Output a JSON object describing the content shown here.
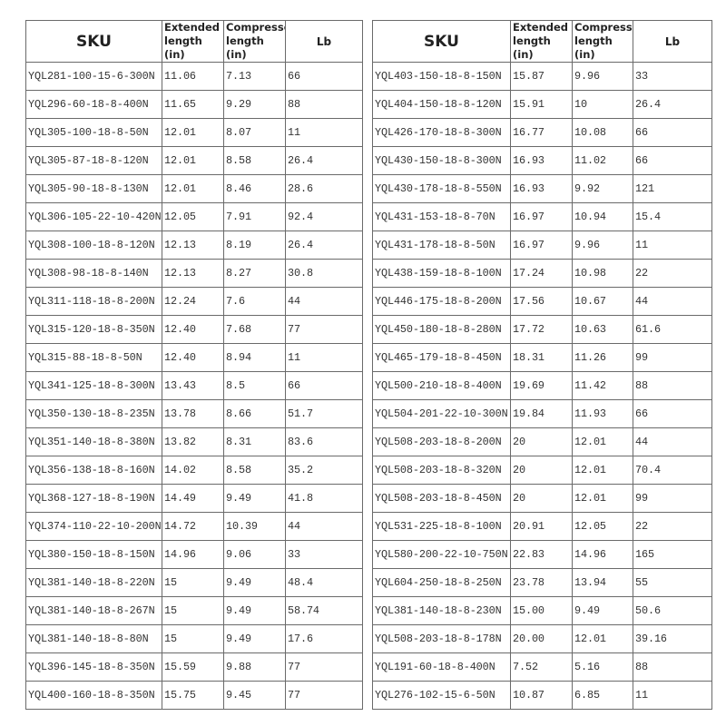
{
  "headers": {
    "sku": "SKU",
    "extended": "Extended length (in)",
    "compressed": "Compressed length (in)",
    "lb": "Lb"
  },
  "left_rows": [
    [
      "YQL281-100-15-6-300N",
      "11.06",
      "7.13",
      "66"
    ],
    [
      "YQL296-60-18-8-400N",
      "11.65",
      "9.29",
      "88"
    ],
    [
      "YQL305-100-18-8-50N",
      "12.01",
      "8.07",
      "11"
    ],
    [
      "YQL305-87-18-8-120N",
      "12.01",
      "8.58",
      "26.4"
    ],
    [
      "YQL305-90-18-8-130N",
      "12.01",
      "8.46",
      "28.6"
    ],
    [
      "YQL306-105-22-10-420N",
      "12.05",
      "7.91",
      "92.4"
    ],
    [
      "YQL308-100-18-8-120N",
      "12.13",
      "8.19",
      "26.4"
    ],
    [
      "YQL308-98-18-8-140N",
      "12.13",
      "8.27",
      "30.8"
    ],
    [
      "YQL311-118-18-8-200N",
      "12.24",
      "7.6",
      "44"
    ],
    [
      "YQL315-120-18-8-350N",
      "12.40",
      "7.68",
      "77"
    ],
    [
      "YQL315-88-18-8-50N",
      "12.40",
      "8.94",
      "11"
    ],
    [
      "YQL341-125-18-8-300N",
      "13.43",
      "8.5",
      "66"
    ],
    [
      "YQL350-130-18-8-235N",
      "13.78",
      "8.66",
      "51.7"
    ],
    [
      "YQL351-140-18-8-380N",
      "13.82",
      "8.31",
      "83.6"
    ],
    [
      "YQL356-138-18-8-160N",
      "14.02",
      "8.58",
      "35.2"
    ],
    [
      "YQL368-127-18-8-190N",
      "14.49",
      "9.49",
      "41.8"
    ],
    [
      "YQL374-110-22-10-200N",
      "14.72",
      "10.39",
      "44"
    ],
    [
      "YQL380-150-18-8-150N",
      "14.96",
      "9.06",
      "33"
    ],
    [
      "YQL381-140-18-8-220N",
      "15",
      "9.49",
      "48.4"
    ],
    [
      "YQL381-140-18-8-267N",
      "15",
      "9.49",
      "58.74"
    ],
    [
      "YQL381-140-18-8-80N",
      "15",
      "9.49",
      "17.6"
    ],
    [
      "YQL396-145-18-8-350N",
      "15.59",
      "9.88",
      "77"
    ],
    [
      "YQL400-160-18-8-350N",
      "15.75",
      "9.45",
      "77"
    ]
  ],
  "right_rows": [
    [
      "YQL403-150-18-8-150N",
      "15.87",
      "9.96",
      "33"
    ],
    [
      "YQL404-150-18-8-120N",
      "15.91",
      "10",
      "26.4"
    ],
    [
      "YQL426-170-18-8-300N",
      "16.77",
      "10.08",
      "66"
    ],
    [
      "YQL430-150-18-8-300N",
      "16.93",
      "11.02",
      "66"
    ],
    [
      "YQL430-178-18-8-550N",
      "16.93",
      "9.92",
      "121"
    ],
    [
      "YQL431-153-18-8-70N",
      "16.97",
      "10.94",
      "15.4"
    ],
    [
      "YQL431-178-18-8-50N",
      "16.97",
      "9.96",
      "11"
    ],
    [
      "YQL438-159-18-8-100N",
      "17.24",
      "10.98",
      "22"
    ],
    [
      "YQL446-175-18-8-200N",
      "17.56",
      "10.67",
      "44"
    ],
    [
      "YQL450-180-18-8-280N",
      "17.72",
      "10.63",
      "61.6"
    ],
    [
      "YQL465-179-18-8-450N",
      "18.31",
      "11.26",
      "99"
    ],
    [
      "YQL500-210-18-8-400N",
      "19.69",
      "11.42",
      "88"
    ],
    [
      "YQL504-201-22-10-300N",
      "19.84",
      "11.93",
      "66"
    ],
    [
      "YQL508-203-18-8-200N",
      "20",
      "12.01",
      "44"
    ],
    [
      "YQL508-203-18-8-320N",
      "20",
      "12.01",
      "70.4"
    ],
    [
      "YQL508-203-18-8-450N",
      "20",
      "12.01",
      "99"
    ],
    [
      "YQL531-225-18-8-100N",
      "20.91",
      "12.05",
      "22"
    ],
    [
      "YQL580-200-22-10-750N",
      "22.83",
      "14.96",
      "165"
    ],
    [
      "YQL604-250-18-8-250N",
      "23.78",
      "13.94",
      "55"
    ],
    [
      "YQL381-140-18-8-230N",
      "15.00",
      "9.49",
      "50.6"
    ],
    [
      "YQL508-203-18-8-178N",
      "20.00",
      "12.01",
      "39.16"
    ],
    [
      "YQL191-60-18-8-400N",
      "7.52",
      "5.16",
      "88"
    ],
    [
      "YQL276-102-15-6-50N",
      "10.87",
      "6.85",
      "11"
    ]
  ]
}
